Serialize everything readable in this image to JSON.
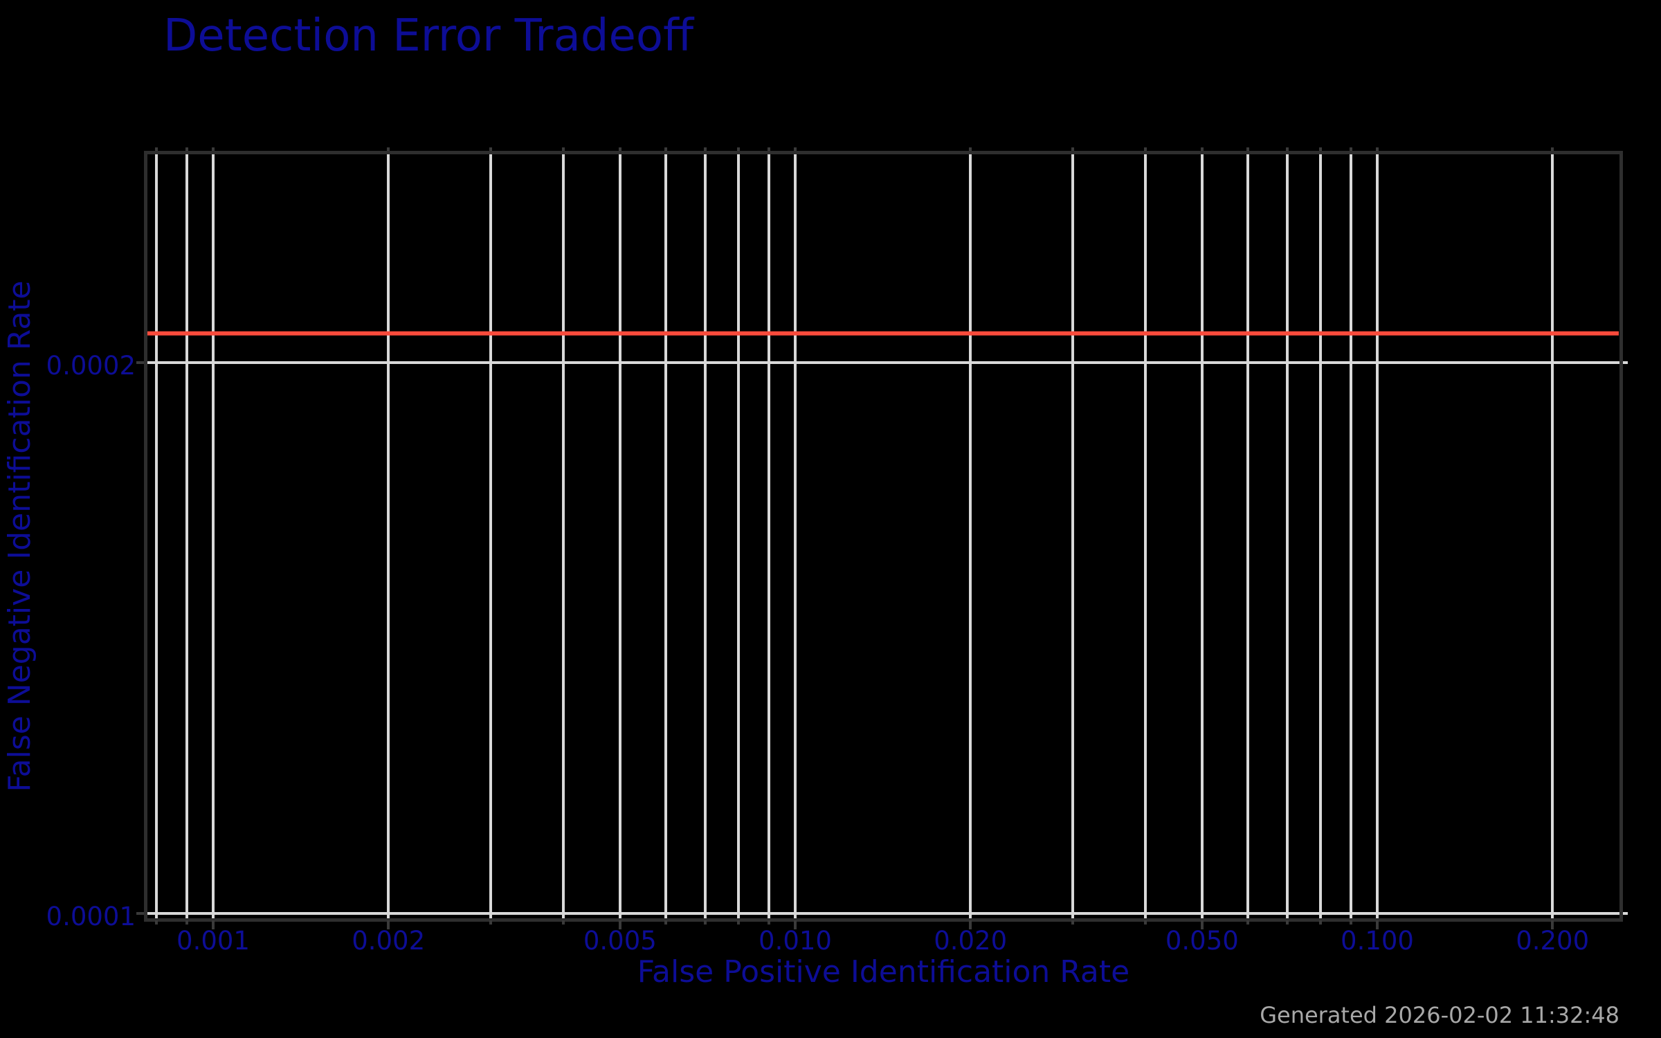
{
  "header": {
    "title": "Detection Error Tradeoff"
  },
  "generated_note": {
    "text": "Generated 2026-02-02 11:32:48",
    "color": "#a8a8a8"
  },
  "colors": {
    "background": "#000000",
    "title_and_labels": "#0d0d96",
    "gridline": "#d9d9d9",
    "spine": "#2e2e2e",
    "tick_mark": "#3a3a3a",
    "curve": "#fa4b3c"
  },
  "chart_data": {
    "type": "line",
    "title": "Detection Error Tradeoff",
    "xlabel": "False Positive Identification Rate",
    "ylabel": "False Negative Identification Rate",
    "x_scale": "log",
    "y_scale": "log",
    "xlim": [
      0.00077,
      0.26
    ],
    "ylim": [
      9.94e-05,
      0.00026
    ],
    "grid": "on",
    "legend_position": "none",
    "x_ticks": [
      {
        "value": 0.001,
        "label": "0.001"
      },
      {
        "value": 0.002,
        "label": "0.002"
      },
      {
        "value": 0.005,
        "label": "0.005"
      },
      {
        "value": 0.01,
        "label": "0.010"
      },
      {
        "value": 0.02,
        "label": "0.020"
      },
      {
        "value": 0.05,
        "label": "0.050"
      },
      {
        "value": 0.1,
        "label": "0.100"
      },
      {
        "value": 0.2,
        "label": "0.200"
      }
    ],
    "x_minor_grid": [
      0.0008,
      0.0009,
      0.003,
      0.004,
      0.006,
      0.007,
      0.008,
      0.009,
      0.03,
      0.04,
      0.06,
      0.07,
      0.08,
      0.09
    ],
    "y_ticks": [
      {
        "value": 0.0001,
        "label": "0.0001"
      },
      {
        "value": 0.0002,
        "label": "0.0002"
      }
    ],
    "series": [
      {
        "name": "DET curve (constant FNIR)",
        "color": "#fa4b3c",
        "x": [
          0.00077,
          0.001,
          0.002,
          0.005,
          0.01,
          0.02,
          0.05,
          0.1,
          0.2,
          0.26
        ],
        "y": [
          0.0002075,
          0.0002075,
          0.0002075,
          0.0002075,
          0.0002075,
          0.0002075,
          0.0002075,
          0.0002075,
          0.0002075,
          0.0002075
        ]
      }
    ],
    "annotations": [
      "Generated 2026-02-02 11:32:48"
    ]
  }
}
